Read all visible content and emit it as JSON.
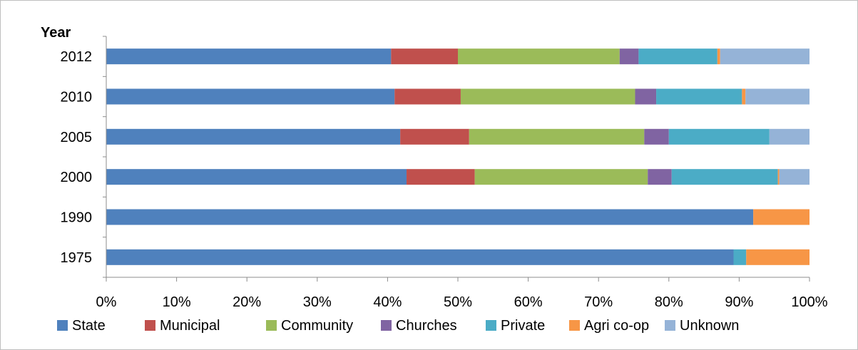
{
  "chart_data": {
    "type": "bar",
    "orientation": "horizontal",
    "stacked": true,
    "percent_stacked": true,
    "ylabel": "Year",
    "xlabel": "",
    "title": "",
    "categories": [
      "2012",
      "2010",
      "2005",
      "2000",
      "1990",
      "1975"
    ],
    "x_ticks": [
      "0%",
      "10%",
      "20%",
      "30%",
      "40%",
      "50%",
      "60%",
      "70%",
      "80%",
      "90%",
      "100%"
    ],
    "xlim": [
      0,
      100
    ],
    "grid": false,
    "legend_position": "bottom",
    "series": [
      {
        "name": "State",
        "color": "#4F81BD",
        "values": [
          40.5,
          41.0,
          41.8,
          42.7,
          92.0,
          89.2
        ]
      },
      {
        "name": "Municipal",
        "color": "#C0504D",
        "values": [
          9.5,
          9.4,
          9.8,
          9.7,
          0.0,
          0.0
        ]
      },
      {
        "name": "Community",
        "color": "#9BBB59",
        "values": [
          23.0,
          24.8,
          24.9,
          24.6,
          0.0,
          0.0
        ]
      },
      {
        "name": "Churches",
        "color": "#8064A2",
        "values": [
          2.7,
          3.0,
          3.5,
          3.4,
          0.0,
          0.0
        ]
      },
      {
        "name": "Private",
        "color": "#4BACC6",
        "values": [
          11.2,
          12.2,
          14.3,
          15.1,
          0.0,
          1.8
        ]
      },
      {
        "name": "Agri co-op",
        "color": "#F79646",
        "values": [
          0.4,
          0.5,
          0.0,
          0.2,
          8.0,
          9.0
        ]
      },
      {
        "name": "Unknown",
        "color": "#95B3D7",
        "values": [
          12.7,
          9.1,
          5.7,
          4.3,
          0.0,
          0.0
        ]
      }
    ]
  }
}
